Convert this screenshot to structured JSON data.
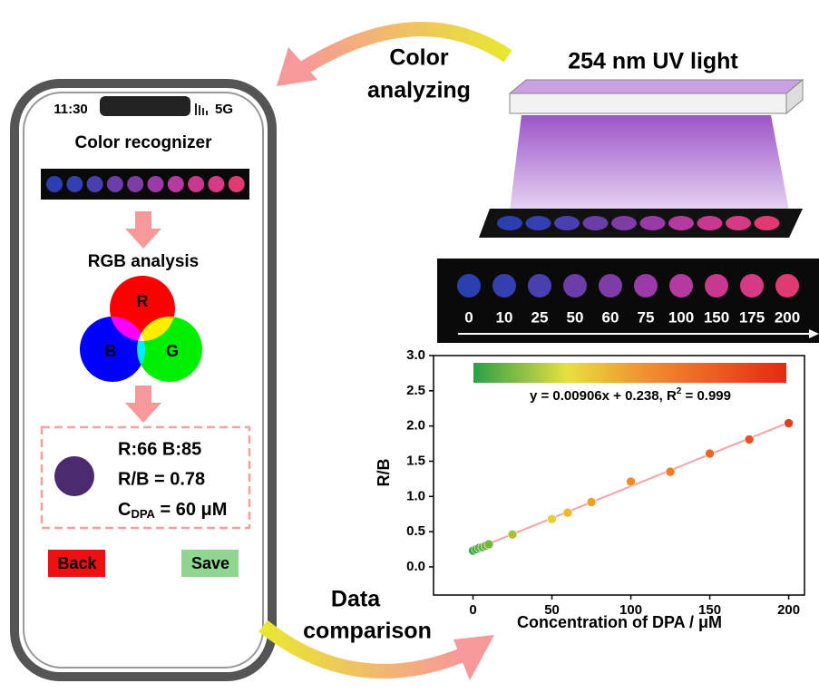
{
  "top_label": {
    "lines": [
      "Color",
      "analyzing"
    ]
  },
  "lamp_label": "254 nm UV light",
  "phone": {
    "time": "11:30",
    "network": "5G",
    "title": "Color recognizer",
    "rgb_title": "RGB analysis",
    "venn": {
      "r": "R",
      "g": "G",
      "b": "B"
    },
    "result": {
      "rb_values": "R:66 B:85",
      "ratio": "R/B = 0.78",
      "conc": {
        "main": "C",
        "sub": "DPA",
        "rest": " = 60 μM"
      },
      "swatch": "#4b2a6e"
    },
    "buttons": {
      "back": "Back",
      "save": "Save"
    }
  },
  "wells": {
    "labels": [
      "0",
      "10",
      "25",
      "50",
      "60",
      "75",
      "100",
      "150",
      "175",
      "200"
    ],
    "colors": [
      "#2b3fb0",
      "#3540b0",
      "#4a3fb0",
      "#6a3da8",
      "#7d3ca6",
      "#9a3aa8",
      "#b53aa0",
      "#c8388f",
      "#d53a84",
      "#e03a72"
    ]
  },
  "bottom_label": {
    "lines": [
      "Data",
      "comparison"
    ]
  },
  "chart_data": {
    "type": "scatter",
    "x": [
      0,
      2,
      4,
      6,
      8,
      10,
      25,
      50,
      60,
      75,
      100,
      125,
      150,
      175,
      200
    ],
    "values": [
      0.23,
      0.25,
      0.27,
      0.28,
      0.3,
      0.32,
      0.46,
      0.68,
      0.77,
      0.92,
      1.21,
      1.35,
      1.61,
      1.81,
      2.04
    ],
    "point_colors": [
      "#3aa845",
      "#45ab44",
      "#52ae42",
      "#5db040",
      "#6ab23e",
      "#78b43c",
      "#a8c236",
      "#e8d030",
      "#f0b828",
      "#f0a028",
      "#f08a28",
      "#f07a28",
      "#ec6428",
      "#e85026",
      "#e43c22"
    ],
    "fit": {
      "slope": 0.00906,
      "intercept": 0.238
    },
    "fit_color": "#f4a3a0",
    "equation": {
      "main": "y = 0.00906x + 0.238, R",
      "sup": "2",
      "rest": " = 0.999"
    },
    "xlabel": "Concentration of DPA / μM",
    "ylabel": "R/B",
    "xlim": [
      -25,
      210
    ],
    "ylim": [
      -0.4,
      3.0
    ],
    "xticks": [
      0,
      50,
      100,
      150,
      200
    ],
    "yticks": [
      {
        "value": 0,
        "label": "0.0"
      },
      {
        "value": 0.5,
        "label": "0.5"
      },
      {
        "value": 1,
        "label": "1.0"
      },
      {
        "value": 1.5,
        "label": "1.5"
      },
      {
        "value": 2,
        "label": "2.0"
      },
      {
        "value": 2.5,
        "label": "2.5"
      },
      {
        "value": 3,
        "label": "3.0"
      }
    ]
  }
}
